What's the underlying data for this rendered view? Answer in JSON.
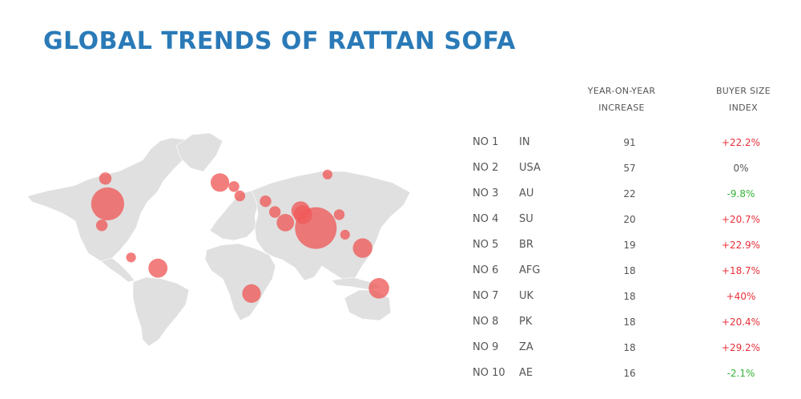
{
  "title": "GLOBAL TRENDS OF RATTAN SOFA",
  "table_headers": {
    "yoy": [
      "YEAR-ON-YEAR",
      "INCREASE"
    ],
    "index": [
      "BUYER SIZE",
      "INDEX"
    ]
  },
  "colors": {
    "title": "#2a7ab8",
    "land": "#e0e0e0",
    "bubble": "#f05a5a",
    "positive": "#e8303a",
    "negative": "#36b336",
    "neutral": "#555555"
  },
  "chart_data": [
    {
      "type": "table",
      "columns": [
        "",
        "",
        "YEAR-ON-YEAR INCREASE",
        "BUYER SIZE INDEX"
      ],
      "rows": [
        {
          "rank": "NO 1",
          "code": "IN",
          "yoy": "91",
          "index": "+22.2%",
          "trend": "pos"
        },
        {
          "rank": "NO 2",
          "code": "USA",
          "yoy": "57",
          "index": "0%",
          "trend": "neu"
        },
        {
          "rank": "NO 3",
          "code": "AU",
          "yoy": "22",
          "index": "-9.8%",
          "trend": "neg"
        },
        {
          "rank": "NO 4",
          "code": "SU",
          "yoy": "20",
          "index": "+20.7%",
          "trend": "pos"
        },
        {
          "rank": "NO 5",
          "code": "BR",
          "yoy": "19",
          "index": "+22.9%",
          "trend": "pos"
        },
        {
          "rank": "NO 6",
          "code": "AFG",
          "yoy": "18",
          "index": "+18.7%",
          "trend": "pos"
        },
        {
          "rank": "NO 7",
          "code": "UK",
          "yoy": "18",
          "index": "+40%",
          "trend": "pos"
        },
        {
          "rank": "NO 8",
          "code": "PK",
          "yoy": "18",
          "index": "+20.4%",
          "trend": "pos"
        },
        {
          "rank": "NO 9",
          "code": "ZA",
          "yoy": "18",
          "index": "+29.2%",
          "trend": "pos"
        },
        {
          "rank": "NO 10",
          "code": "AE",
          "yoy": "16",
          "index": "-2.1%",
          "trend": "neg"
        }
      ]
    },
    {
      "type": "scatter",
      "map": "world",
      "points": [
        {
          "lon": 80,
          "lat": 20,
          "size": 91
        },
        {
          "lon": -98,
          "lat": 38,
          "size": 57
        },
        {
          "lon": 134,
          "lat": -25,
          "size": 22
        },
        {
          "lon": 120,
          "lat": 5,
          "size": 20
        },
        {
          "lon": -55,
          "lat": -10,
          "size": 19
        },
        {
          "lon": 67,
          "lat": 33,
          "size": 18
        },
        {
          "lon": -2,
          "lat": 54,
          "size": 18
        },
        {
          "lon": 69,
          "lat": 30,
          "size": 18
        },
        {
          "lon": 25,
          "lat": -29,
          "size": 18
        },
        {
          "lon": 54,
          "lat": 24,
          "size": 16
        },
        {
          "lon": -100,
          "lat": 57,
          "size": 8
        },
        {
          "lon": -103,
          "lat": 22,
          "size": 7
        },
        {
          "lon": 10,
          "lat": 51,
          "size": 6
        },
        {
          "lon": 15,
          "lat": 44,
          "size": 6
        },
        {
          "lon": 45,
          "lat": 32,
          "size": 7
        },
        {
          "lon": 37,
          "lat": 40,
          "size": 7
        },
        {
          "lon": 100,
          "lat": 30,
          "size": 6
        },
        {
          "lon": 105,
          "lat": 15,
          "size": 5
        },
        {
          "lon": 90,
          "lat": 60,
          "size": 5
        },
        {
          "lon": -78,
          "lat": -2,
          "size": 5
        }
      ]
    }
  ]
}
